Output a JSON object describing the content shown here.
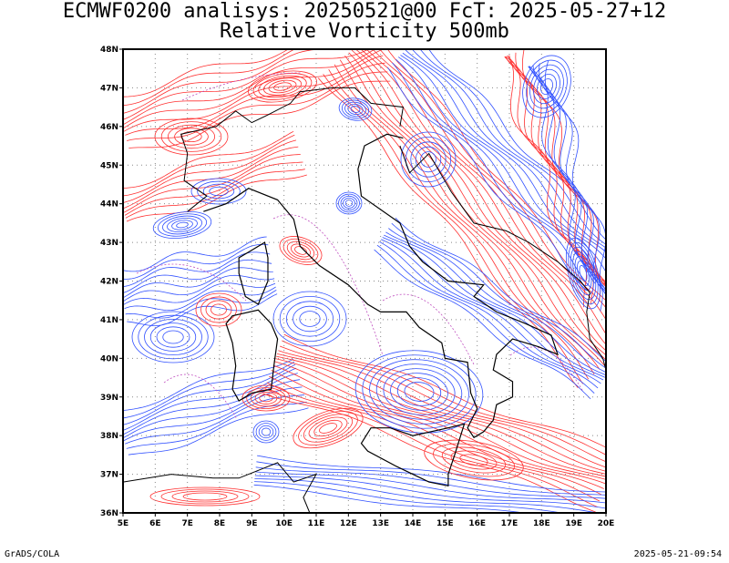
{
  "title": {
    "line1": "ECMWF0200 analisys: 20250521@00 FcT: 2025-05-27+12",
    "line2": "Relative Vorticity 500mb"
  },
  "map": {
    "lon_range": [
      5,
      20
    ],
    "lat_range": [
      36,
      48
    ],
    "lon_ticks": [
      "5E",
      "6E",
      "7E",
      "8E",
      "9E",
      "10E",
      "11E",
      "12E",
      "13E",
      "14E",
      "15E",
      "16E",
      "17E",
      "18E",
      "19E",
      "20E"
    ],
    "lat_ticks": [
      "36N",
      "37N",
      "38N",
      "39N",
      "40N",
      "41N",
      "42N",
      "43N",
      "44N",
      "45N",
      "46N",
      "47N",
      "48N"
    ],
    "grid": "dotted",
    "positive_contour_color": "#ff3030",
    "negative_contour_color": "#3050ff",
    "zero_contour_color": "#c050c0",
    "coastline_color": "#000000"
  },
  "footer": {
    "left": "GrADS/COLA",
    "right": "2025-05-21-09:54"
  }
}
